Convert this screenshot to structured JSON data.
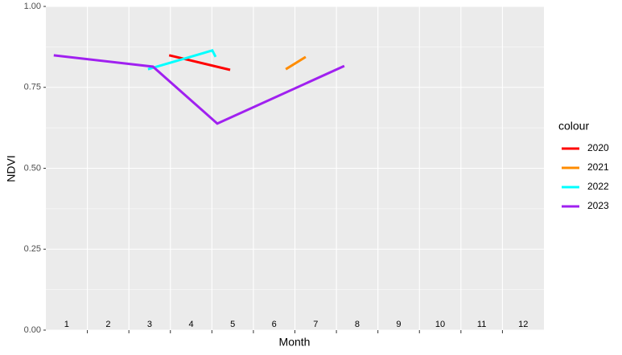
{
  "chart_data": {
    "type": "line",
    "x_label": "Month",
    "y_label": "NDVI",
    "legend_title": "colour",
    "legend_position": "right",
    "xlim": [
      0.5,
      12.5
    ],
    "x_breaks": [
      1.5,
      2.5,
      3.5,
      4.5,
      5.5,
      6.5,
      7.5,
      8.5,
      9.5,
      10.5,
      11.5
    ],
    "month_labels": [
      1,
      2,
      3,
      4,
      5,
      6,
      7,
      8,
      9,
      10,
      11,
      12
    ],
    "ylim": [
      0,
      1
    ],
    "yticks": [
      {
        "value": 0,
        "label": "0.00"
      },
      {
        "value": 0.25,
        "label": "0.25"
      },
      {
        "value": 0.5,
        "label": "0.50"
      },
      {
        "value": 0.75,
        "label": "0.75"
      },
      {
        "value": 1,
        "label": "1.00"
      }
    ],
    "yminor": [
      0.125,
      0.375,
      0.625,
      0.875
    ],
    "grid": true,
    "series": [
      {
        "name": "2020",
        "color": "#ff0000",
        "x": [
          3.47,
          4.94
        ],
        "values": [
          0.849,
          0.804
        ]
      },
      {
        "name": "2021",
        "color": "#ff8c00",
        "x": [
          6.28,
          6.76
        ],
        "values": [
          0.806,
          0.844
        ]
      },
      {
        "name": "2022",
        "color": "#00ffff",
        "x": [
          2.96,
          4.51,
          4.59
        ],
        "values": [
          0.806,
          0.864,
          0.844
        ]
      },
      {
        "name": "2023",
        "color": "#a020f0",
        "x": [
          0.69,
          3.08,
          4.63,
          7.69
        ],
        "values": [
          0.849,
          0.814,
          0.638,
          0.816
        ]
      }
    ]
  }
}
